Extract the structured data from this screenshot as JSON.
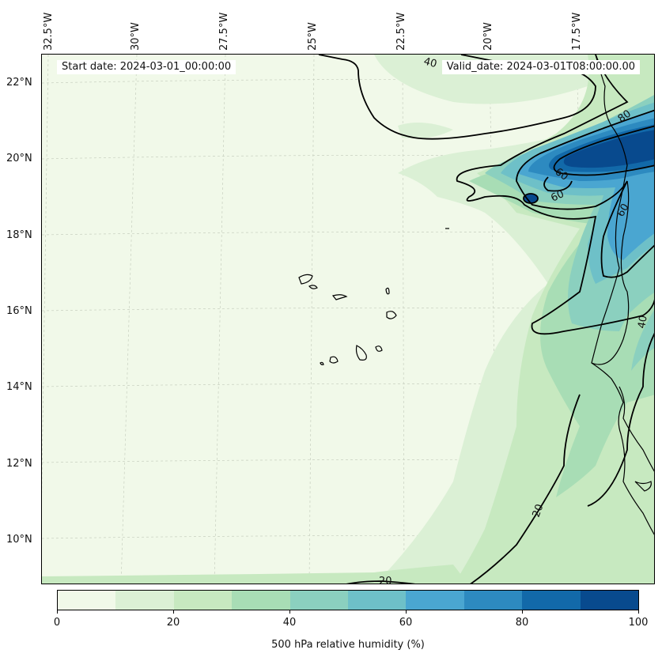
{
  "header": {
    "start_date": "Start date: 2024-03-01_00:00:00",
    "valid_date": "Valid_date: 2024-03-01T08:00:00.00"
  },
  "lat_labels": [
    "22°N",
    "20°N",
    "18°N",
    "16°N",
    "14°N",
    "12°N",
    "10°N"
  ],
  "lon_labels": [
    "32.5°W",
    "30°W",
    "27.5°W",
    "25°W",
    "22.5°W",
    "20°W",
    "17.5°W"
  ],
  "contour_labels": [
    "40",
    "60",
    "80",
    "60",
    "60",
    "40",
    "20",
    "20"
  ],
  "colorbar": {
    "title": "500 hPa relative humidity (%)",
    "ticks": [
      "0",
      "20",
      "40",
      "60",
      "80",
      "100"
    ],
    "colors": [
      "#f1f9e9",
      "#dbf0d5",
      "#c7e9c0",
      "#a8ddb5",
      "#8bd0bf",
      "#6ec0c8",
      "#4aa6d1",
      "#2d8ac0",
      "#1269a9",
      "#084a8e"
    ]
  },
  "field": {
    "name": "500 hPa relative humidity",
    "units": "%",
    "min": 0,
    "max": 100
  }
}
